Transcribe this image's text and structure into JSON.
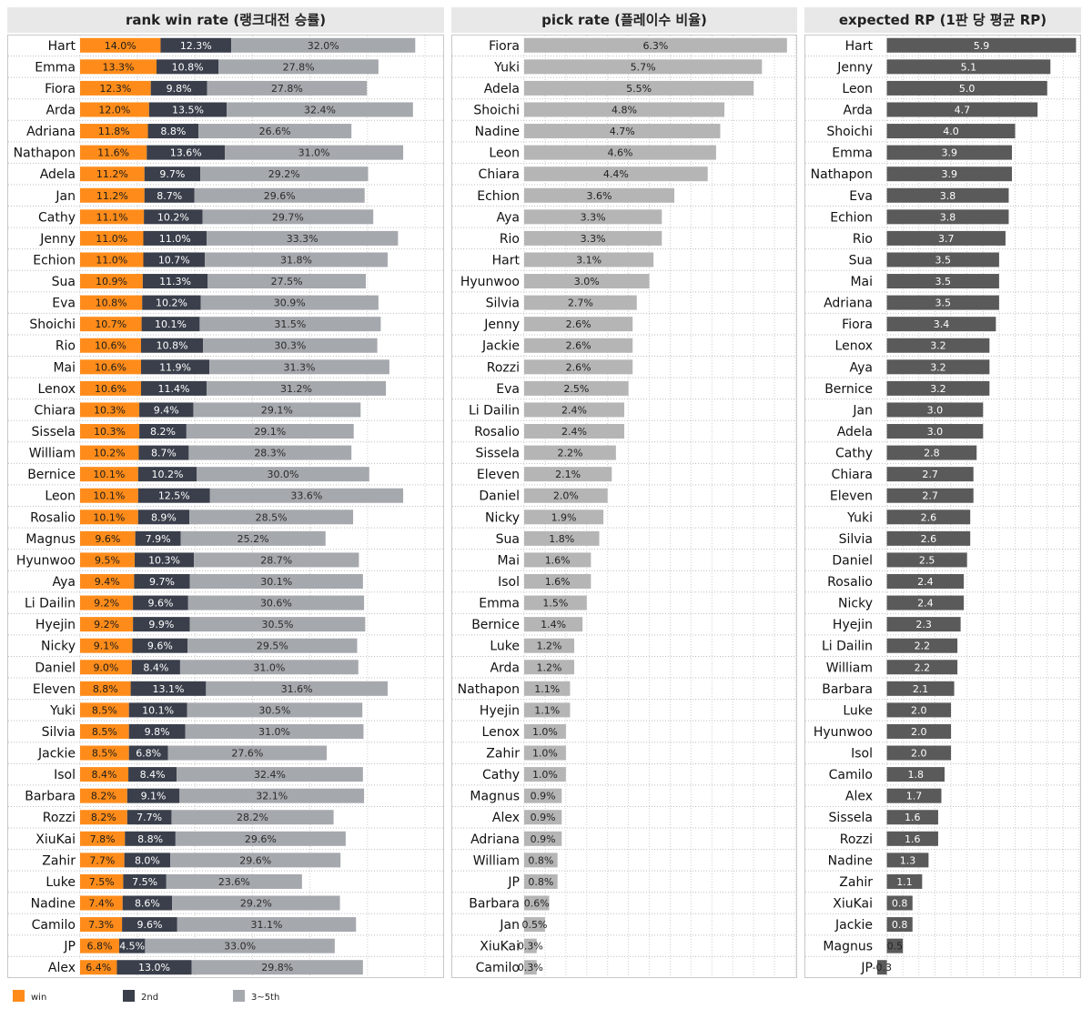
{
  "colors": {
    "win": "#ff8c1a",
    "second": "#3a3f4b",
    "third_to_fifth": "#a5a8ad",
    "pick": "#b5b5b5",
    "rp": "#5a5a5a",
    "title_bg": "#e8e8e8"
  },
  "chart_data": [
    {
      "type": "bar",
      "stacked": true,
      "orientation": "horizontal",
      "title": "rank win rate (랭크대전 승률)",
      "categories": [
        "Hart",
        "Emma",
        "Fiora",
        "Arda",
        "Adriana",
        "Nathapon",
        "Adela",
        "Jan",
        "Cathy",
        "Jenny",
        "Echion",
        "Sua",
        "Eva",
        "Shoichi",
        "Rio",
        "Mai",
        "Lenox",
        "Chiara",
        "Sissela",
        "William",
        "Bernice",
        "Leon",
        "Rosalio",
        "Magnus",
        "Hyunwoo",
        "Aya",
        "Li Dailin",
        "Hyejin",
        "Nicky",
        "Daniel",
        "Eleven",
        "Yuki",
        "Silvia",
        "Jackie",
        "Isol",
        "Barbara",
        "Rozzi",
        "XiuKai",
        "Zahir",
        "Luke",
        "Nadine",
        "Camilo",
        "JP",
        "Alex"
      ],
      "series": [
        {
          "name": "win",
          "values": [
            14.0,
            13.3,
            12.3,
            12.0,
            11.8,
            11.6,
            11.2,
            11.2,
            11.1,
            11.0,
            11.0,
            10.9,
            10.8,
            10.7,
            10.6,
            10.6,
            10.6,
            10.3,
            10.3,
            10.2,
            10.1,
            10.1,
            10.1,
            9.6,
            9.5,
            9.4,
            9.2,
            9.2,
            9.1,
            9.0,
            8.8,
            8.5,
            8.5,
            8.5,
            8.4,
            8.2,
            8.2,
            7.8,
            7.7,
            7.5,
            7.4,
            7.3,
            6.8,
            6.4
          ]
        },
        {
          "name": "2nd",
          "values": [
            12.3,
            10.8,
            9.8,
            13.5,
            8.8,
            13.6,
            9.7,
            8.7,
            10.2,
            11.0,
            10.7,
            11.3,
            10.2,
            10.1,
            10.8,
            11.9,
            11.4,
            9.4,
            8.2,
            8.7,
            10.2,
            12.5,
            8.9,
            7.9,
            10.3,
            9.7,
            9.6,
            9.9,
            9.6,
            8.4,
            13.1,
            10.1,
            9.8,
            6.8,
            8.4,
            9.1,
            7.7,
            8.8,
            8.0,
            7.5,
            8.6,
            9.6,
            4.5,
            13.0
          ]
        },
        {
          "name": "3~5th",
          "values": [
            32.0,
            27.8,
            27.8,
            32.4,
            26.6,
            31.0,
            29.2,
            29.6,
            29.7,
            33.3,
            31.8,
            27.5,
            30.9,
            31.5,
            30.3,
            31.3,
            31.2,
            29.1,
            29.1,
            28.3,
            30.0,
            33.6,
            28.5,
            25.2,
            28.7,
            30.1,
            30.6,
            30.5,
            29.5,
            31.0,
            31.6,
            30.5,
            31.0,
            27.6,
            32.4,
            32.1,
            28.2,
            29.6,
            29.6,
            23.6,
            29.2,
            31.1,
            33.0,
            29.8
          ]
        }
      ],
      "labels": [
        "14.0%",
        "13.3%",
        "12.3%",
        "12.0%",
        "11.8%",
        "11.6%",
        "11.2%",
        "11.2%",
        "11.1%",
        "11.0%",
        "11.0%",
        "10.9%",
        "10.8%",
        "10.7%",
        "10.6%",
        "10.6%",
        "10.6%",
        "10.3%",
        "10.3%",
        "10.2%",
        "10.1%",
        "10.1%",
        "10.1%",
        "9.6%",
        "9.5%",
        "9.4%",
        "9.2%",
        "9.2%",
        "9.1%",
        "9.0%",
        "8.8%",
        "8.5%",
        "8.5%",
        "8.5%",
        "8.4%",
        "8.2%",
        "8.2%",
        "7.8%",
        "7.7%",
        "7.5%",
        "7.4%",
        "7.3%",
        "6.8%",
        "6.4%"
      ],
      "labels2": [
        "12.3%",
        "10.8%",
        "9.8%",
        "13.5%",
        "8.8%",
        "13.6%",
        "9.7%",
        "8.7%",
        "10.2%",
        "11.0%",
        "10.7%",
        "11.3%",
        "10.2%",
        "10.1%",
        "10.8%",
        "11.9%",
        "11.4%",
        "9.4%",
        "8.2%",
        "8.7%",
        "10.2%",
        "12.5%",
        "8.9%",
        "7.9%",
        "10.3%",
        "9.7%",
        "9.6%",
        "9.9%",
        "9.6%",
        "8.4%",
        "13.1%",
        "10.1%",
        "9.8%",
        "6.8%",
        "8.4%",
        "9.1%",
        "7.7%",
        "8.8%",
        "8.0%",
        "7.5%",
        "8.6%",
        "9.6%",
        "4.5%",
        "13.0%"
      ],
      "labels3": [
        "32.0%",
        "27.8%",
        "27.8%",
        "32.4%",
        "26.6%",
        "31.0%",
        "29.2%",
        "29.6%",
        "29.7%",
        "33.3%",
        "31.8%",
        "27.5%",
        "30.9%",
        "31.5%",
        "30.3%",
        "31.3%",
        "31.2%",
        "29.1%",
        "29.1%",
        "28.3%",
        "30.0%",
        "33.6%",
        "28.5%",
        "25.2%",
        "28.7%",
        "30.1%",
        "30.6%",
        "30.5%",
        "29.5%",
        "31.0%",
        "31.6%",
        "30.5%",
        "31.0%",
        "27.6%",
        "32.4%",
        "32.1%",
        "28.2%",
        "29.6%",
        "29.6%",
        "23.6%",
        "29.2%",
        "31.1%",
        "33.0%",
        "29.8%"
      ],
      "xlim": [
        0,
        63
      ],
      "legend": "bottom-left"
    },
    {
      "type": "bar",
      "orientation": "horizontal",
      "title": "pick rate (플레이수 비율)",
      "categories": [
        "Fiora",
        "Yuki",
        "Adela",
        "Shoichi",
        "Nadine",
        "Leon",
        "Chiara",
        "Echion",
        "Aya",
        "Rio",
        "Hart",
        "Hyunwoo",
        "Silvia",
        "Jenny",
        "Jackie",
        "Rozzi",
        "Eva",
        "Li Dailin",
        "Rosalio",
        "Sissela",
        "Eleven",
        "Daniel",
        "Nicky",
        "Sua",
        "Mai",
        "Isol",
        "Emma",
        "Bernice",
        "Luke",
        "Arda",
        "Nathapon",
        "Hyejin",
        "Lenox",
        "Zahir",
        "Cathy",
        "Magnus",
        "Alex",
        "Adriana",
        "William",
        "JP",
        "Barbara",
        "Jan",
        "XiuKai",
        "Camilo"
      ],
      "values": [
        6.3,
        5.7,
        5.5,
        4.8,
        4.7,
        4.6,
        4.4,
        3.6,
        3.3,
        3.3,
        3.1,
        3.0,
        2.7,
        2.6,
        2.6,
        2.6,
        2.5,
        2.4,
        2.4,
        2.2,
        2.1,
        2.0,
        1.9,
        1.8,
        1.6,
        1.6,
        1.5,
        1.4,
        1.2,
        1.2,
        1.1,
        1.1,
        1.0,
        1.0,
        1.0,
        0.9,
        0.9,
        0.9,
        0.8,
        0.8,
        0.6,
        0.5,
        0.3,
        0.3
      ],
      "labels": [
        "6.3%",
        "5.7%",
        "5.5%",
        "4.8%",
        "4.7%",
        "4.6%",
        "4.4%",
        "3.6%",
        "3.3%",
        "3.3%",
        "3.1%",
        "3.0%",
        "2.7%",
        "2.6%",
        "2.6%",
        "2.6%",
        "2.5%",
        "2.4%",
        "2.4%",
        "2.2%",
        "2.1%",
        "2.0%",
        "1.9%",
        "1.8%",
        "1.6%",
        "1.6%",
        "1.5%",
        "1.4%",
        "1.2%",
        "1.2%",
        "1.1%",
        "1.1%",
        "1.0%",
        "1.0%",
        "1.0%",
        "0.9%",
        "0.9%",
        "0.9%",
        "0.8%",
        "0.8%",
        "0.6%",
        "0.5%",
        "0.3%",
        "0.3%"
      ],
      "xlim": [
        0,
        6.5
      ]
    },
    {
      "type": "bar",
      "orientation": "horizontal",
      "title": "expected RP (1판 당 평균 RP)",
      "categories": [
        "Hart",
        "Jenny",
        "Leon",
        "Arda",
        "Shoichi",
        "Emma",
        "Nathapon",
        "Eva",
        "Echion",
        "Rio",
        "Sua",
        "Mai",
        "Adriana",
        "Fiora",
        "Lenox",
        "Aya",
        "Bernice",
        "Jan",
        "Adela",
        "Cathy",
        "Chiara",
        "Eleven",
        "Yuki",
        "Silvia",
        "Daniel",
        "Rosalio",
        "Nicky",
        "Hyejin",
        "Li Dailin",
        "William",
        "Barbara",
        "Luke",
        "Hyunwoo",
        "Isol",
        "Camilo",
        "Alex",
        "Sissela",
        "Rozzi",
        "Nadine",
        "Zahir",
        "XiuKai",
        "Jackie",
        "Magnus",
        "JP"
      ],
      "values": [
        5.9,
        5.1,
        5.0,
        4.7,
        4.0,
        3.9,
        3.9,
        3.8,
        3.8,
        3.7,
        3.5,
        3.5,
        3.5,
        3.4,
        3.2,
        3.2,
        3.2,
        3.0,
        3.0,
        2.8,
        2.7,
        2.7,
        2.6,
        2.6,
        2.5,
        2.4,
        2.4,
        2.3,
        2.2,
        2.2,
        2.1,
        2.0,
        2.0,
        2.0,
        1.8,
        1.7,
        1.6,
        1.6,
        1.3,
        1.1,
        0.8,
        0.8,
        0.5,
        -0.3
      ],
      "labels": [
        "5.9",
        "5.1",
        "5.0",
        "4.7",
        "4.0",
        "3.9",
        "3.9",
        "3.8",
        "3.8",
        "3.7",
        "3.5",
        "3.5",
        "3.5",
        "3.4",
        "3.2",
        "3.2",
        "3.2",
        "3.0",
        "3.0",
        "2.8",
        "2.7",
        "2.7",
        "2.6",
        "2.6",
        "2.5",
        "2.4",
        "2.4",
        "2.3",
        "2.2",
        "2.2",
        "2.1",
        "2.0",
        "2.0",
        "2.0",
        "1.8",
        "1.7",
        "1.6",
        "1.6",
        "1.3",
        "1.1",
        "0.8",
        "0.8",
        "0.5",
        "-0.3"
      ],
      "xlim": [
        -0.3,
        6.0
      ]
    }
  ],
  "legend": [
    {
      "name": "win",
      "color": "#ff8c1a"
    },
    {
      "name": "2nd",
      "color": "#3a3f4b"
    },
    {
      "name": "3~5th",
      "color": "#a5a8ad"
    }
  ]
}
